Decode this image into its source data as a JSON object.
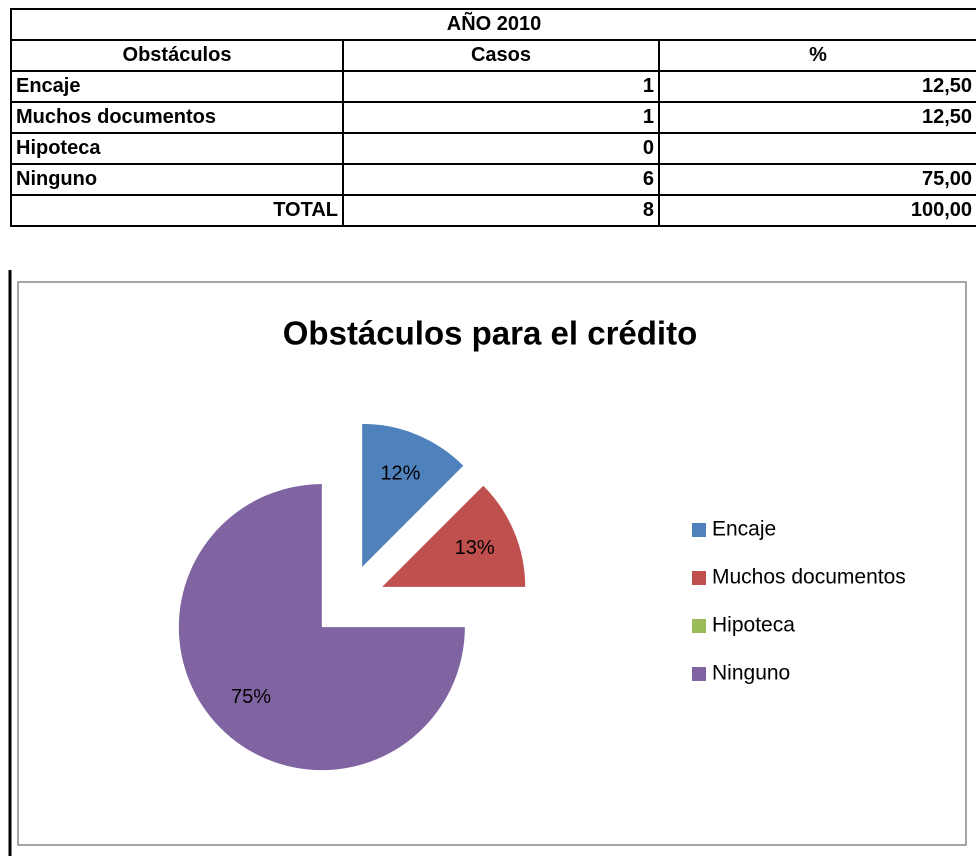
{
  "table": {
    "title": "AÑO 2010",
    "header": [
      "Obstáculos",
      "Casos",
      "%"
    ],
    "rows": [
      [
        "Encaje",
        "1",
        "12,50"
      ],
      [
        "Muchos documentos",
        "1",
        "12,50"
      ],
      [
        "Hipoteca",
        "0"
      ],
      [
        "Ninguno",
        "6",
        "75,00"
      ]
    ],
    "total": [
      "TOTAL",
      "8",
      "100,00"
    ]
  },
  "chart_data": {
    "type": "pie",
    "title": "Obstáculos para el crédito",
    "categories": [
      "Encaje",
      "Muchos documentos",
      "Hipoteca",
      "Ninguno"
    ],
    "values": [
      12.5,
      12.5,
      0,
      75
    ],
    "value_labels": [
      "12%",
      "13%",
      null,
      "75%"
    ],
    "colors": [
      "#4f81bd",
      "#c0504d",
      "#9bbb59",
      "#8064a2"
    ],
    "legend": "right",
    "explode": true
  }
}
